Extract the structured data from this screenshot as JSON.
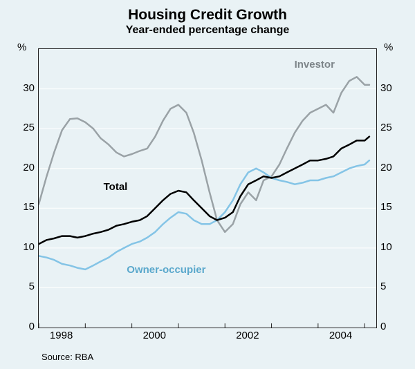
{
  "chart": {
    "type": "line",
    "title": "Housing Credit Growth",
    "subtitle": "Year-ended percentage change",
    "y_unit": "%",
    "source": "Source: RBA",
    "background_color": "#e9f2f5",
    "grid_color": "#ffffff",
    "border_color": "#222222",
    "title_fontsize": 21,
    "subtitle_fontsize": 16,
    "label_fontsize": 15,
    "ylim": [
      0,
      35
    ],
    "ytick_step": 5,
    "yticks": [
      0,
      5,
      10,
      15,
      20,
      25,
      30
    ],
    "x_range": [
      1997.0,
      2004.25
    ],
    "x_ticks": [
      1997,
      1998,
      1999,
      2000,
      2001,
      2002,
      2003,
      2004
    ],
    "x_labels_shown": [
      "1998",
      "2000",
      "2002",
      "2004"
    ],
    "x_labels_at": [
      1998,
      2000,
      2002,
      2004
    ],
    "series": {
      "investor": {
        "label": "Investor",
        "color": "#9aa2a6",
        "width": 2.5,
        "label_pos": {
          "x": 2003.1,
          "y": 32.8
        },
        "data": [
          [
            1997.0,
            15.5
          ],
          [
            1997.17,
            19.0
          ],
          [
            1997.33,
            22.0
          ],
          [
            1997.5,
            24.8
          ],
          [
            1997.67,
            26.2
          ],
          [
            1997.83,
            26.3
          ],
          [
            1998.0,
            25.8
          ],
          [
            1998.17,
            25.0
          ],
          [
            1998.33,
            23.8
          ],
          [
            1998.5,
            23.0
          ],
          [
            1998.67,
            22.0
          ],
          [
            1998.83,
            21.5
          ],
          [
            1999.0,
            21.8
          ],
          [
            1999.17,
            22.2
          ],
          [
            1999.33,
            22.5
          ],
          [
            1999.5,
            24.0
          ],
          [
            1999.67,
            26.0
          ],
          [
            1999.83,
            27.5
          ],
          [
            2000.0,
            28.0
          ],
          [
            2000.17,
            27.0
          ],
          [
            2000.33,
            24.5
          ],
          [
            2000.5,
            21.0
          ],
          [
            2000.67,
            17.0
          ],
          [
            2000.83,
            13.5
          ],
          [
            2001.0,
            12.0
          ],
          [
            2001.17,
            13.0
          ],
          [
            2001.33,
            15.5
          ],
          [
            2001.5,
            17.0
          ],
          [
            2001.67,
            16.0
          ],
          [
            2001.83,
            18.5
          ],
          [
            2002.0,
            19.0
          ],
          [
            2002.17,
            20.5
          ],
          [
            2002.33,
            22.5
          ],
          [
            2002.5,
            24.5
          ],
          [
            2002.67,
            26.0
          ],
          [
            2002.83,
            27.0
          ],
          [
            2003.0,
            27.5
          ],
          [
            2003.17,
            28.0
          ],
          [
            2003.33,
            27.0
          ],
          [
            2003.5,
            29.5
          ],
          [
            2003.67,
            31.0
          ],
          [
            2003.83,
            31.5
          ],
          [
            2004.0,
            30.5
          ],
          [
            2004.1,
            30.5
          ]
        ]
      },
      "total": {
        "label": "Total",
        "color": "#000000",
        "width": 2.5,
        "label_pos": {
          "x": 1999.0,
          "y": 17.5
        },
        "data": [
          [
            1997.0,
            10.5
          ],
          [
            1997.17,
            11.0
          ],
          [
            1997.33,
            11.2
          ],
          [
            1997.5,
            11.5
          ],
          [
            1997.67,
            11.5
          ],
          [
            1997.83,
            11.3
          ],
          [
            1998.0,
            11.5
          ],
          [
            1998.17,
            11.8
          ],
          [
            1998.33,
            12.0
          ],
          [
            1998.5,
            12.3
          ],
          [
            1998.67,
            12.8
          ],
          [
            1998.83,
            13.0
          ],
          [
            1999.0,
            13.3
          ],
          [
            1999.17,
            13.5
          ],
          [
            1999.33,
            14.0
          ],
          [
            1999.5,
            15.0
          ],
          [
            1999.67,
            16.0
          ],
          [
            1999.83,
            16.8
          ],
          [
            2000.0,
            17.2
          ],
          [
            2000.17,
            17.0
          ],
          [
            2000.33,
            16.0
          ],
          [
            2000.5,
            15.0
          ],
          [
            2000.67,
            14.0
          ],
          [
            2000.83,
            13.5
          ],
          [
            2001.0,
            13.8
          ],
          [
            2001.17,
            14.5
          ],
          [
            2001.33,
            16.5
          ],
          [
            2001.5,
            18.0
          ],
          [
            2001.67,
            18.5
          ],
          [
            2001.83,
            19.0
          ],
          [
            2002.0,
            18.8
          ],
          [
            2002.17,
            19.0
          ],
          [
            2002.33,
            19.5
          ],
          [
            2002.5,
            20.0
          ],
          [
            2002.67,
            20.5
          ],
          [
            2002.83,
            21.0
          ],
          [
            2003.0,
            21.0
          ],
          [
            2003.17,
            21.2
          ],
          [
            2003.33,
            21.5
          ],
          [
            2003.5,
            22.5
          ],
          [
            2003.67,
            23.0
          ],
          [
            2003.83,
            23.5
          ],
          [
            2004.0,
            23.5
          ],
          [
            2004.1,
            24.0
          ]
        ]
      },
      "owner": {
        "label": "Owner-occupier",
        "color": "#84c4e6",
        "width": 2.5,
        "label_pos": {
          "x": 1999.5,
          "y": 7.0
        },
        "data": [
          [
            1997.0,
            9.0
          ],
          [
            1997.17,
            8.8
          ],
          [
            1997.33,
            8.5
          ],
          [
            1997.5,
            8.0
          ],
          [
            1997.67,
            7.8
          ],
          [
            1997.83,
            7.5
          ],
          [
            1998.0,
            7.3
          ],
          [
            1998.17,
            7.8
          ],
          [
            1998.33,
            8.3
          ],
          [
            1998.5,
            8.8
          ],
          [
            1998.67,
            9.5
          ],
          [
            1998.83,
            10.0
          ],
          [
            1999.0,
            10.5
          ],
          [
            1999.17,
            10.8
          ],
          [
            1999.33,
            11.3
          ],
          [
            1999.5,
            12.0
          ],
          [
            1999.67,
            13.0
          ],
          [
            1999.83,
            13.8
          ],
          [
            2000.0,
            14.5
          ],
          [
            2000.17,
            14.3
          ],
          [
            2000.33,
            13.5
          ],
          [
            2000.5,
            13.0
          ],
          [
            2000.67,
            13.0
          ],
          [
            2000.83,
            13.5
          ],
          [
            2001.0,
            14.5
          ],
          [
            2001.17,
            16.0
          ],
          [
            2001.33,
            18.0
          ],
          [
            2001.5,
            19.5
          ],
          [
            2001.67,
            20.0
          ],
          [
            2001.83,
            19.5
          ],
          [
            2002.0,
            18.8
          ],
          [
            2002.17,
            18.5
          ],
          [
            2002.33,
            18.3
          ],
          [
            2002.5,
            18.0
          ],
          [
            2002.67,
            18.2
          ],
          [
            2002.83,
            18.5
          ],
          [
            2003.0,
            18.5
          ],
          [
            2003.17,
            18.8
          ],
          [
            2003.33,
            19.0
          ],
          [
            2003.5,
            19.5
          ],
          [
            2003.67,
            20.0
          ],
          [
            2003.83,
            20.3
          ],
          [
            2004.0,
            20.5
          ],
          [
            2004.1,
            21.0
          ]
        ]
      }
    }
  }
}
